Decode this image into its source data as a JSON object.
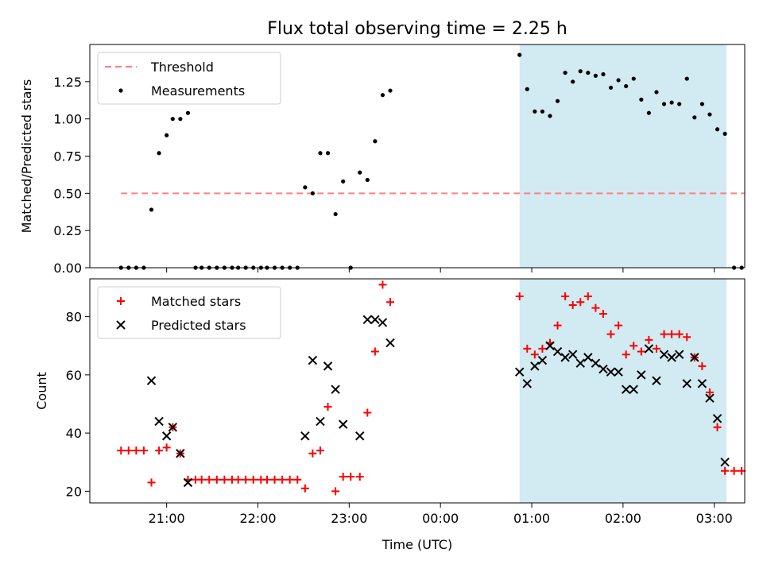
{
  "title": "Flux total observing time = 2.25 h",
  "colors": {
    "threshold": "#ff7f7f",
    "measure": "#000000",
    "matched": "#ff0000",
    "predicted": "#000000",
    "shade": "#add8e6"
  },
  "chart_data": [
    {
      "type": "scatter",
      "ylabel": "Matched/Predicted stars",
      "ylim": [
        0,
        1.5
      ],
      "yticks": [
        "0.00",
        "0.25",
        "0.50",
        "0.75",
        "1.00",
        "1.25"
      ],
      "shaded_span": [
        "00:52",
        "03:08"
      ],
      "legend": {
        "placement": "top-left",
        "entries": [
          "Threshold",
          "Measurements"
        ]
      },
      "threshold": {
        "name": "Threshold",
        "value": 0.5,
        "x_range": [
          "20:30",
          "03:20"
        ]
      },
      "series": [
        {
          "name": "Measurements",
          "points": [
            [
              "20:30",
              0
            ],
            [
              "20:35",
              0
            ],
            [
              "20:40",
              0
            ],
            [
              "20:45",
              0
            ],
            [
              "20:50",
              0.39
            ],
            [
              "20:55",
              0.77
            ],
            [
              "21:00",
              0.89
            ],
            [
              "21:04",
              1.0
            ],
            [
              "21:09",
              1.0
            ],
            [
              "21:14",
              1.04
            ],
            [
              "21:19",
              0
            ],
            [
              "21:23",
              0
            ],
            [
              "21:28",
              0
            ],
            [
              "21:33",
              0
            ],
            [
              "21:38",
              0
            ],
            [
              "21:43",
              0
            ],
            [
              "21:47",
              0
            ],
            [
              "21:52",
              0
            ],
            [
              "21:57",
              0
            ],
            [
              "22:02",
              0
            ],
            [
              "22:06",
              0
            ],
            [
              "22:11",
              0
            ],
            [
              "22:16",
              0
            ],
            [
              "22:21",
              0
            ],
            [
              "22:26",
              0
            ],
            [
              "22:31",
              0.54
            ],
            [
              "22:36",
              0.5
            ],
            [
              "22:41",
              0.77
            ],
            [
              "22:46",
              0.77
            ],
            [
              "22:51",
              0.36
            ],
            [
              "22:56",
              0.58
            ],
            [
              "23:01",
              0
            ],
            [
              "23:07",
              0.64
            ],
            [
              "23:12",
              0.59
            ],
            [
              "23:17",
              0.85
            ],
            [
              "23:22",
              1.16
            ],
            [
              "23:27",
              1.19
            ],
            [
              "00:52",
              1.43
            ],
            [
              "00:57",
              1.2
            ],
            [
              "01:02",
              1.05
            ],
            [
              "01:07",
              1.05
            ],
            [
              "01:12",
              1.02
            ],
            [
              "01:17",
              1.12
            ],
            [
              "01:22",
              1.31
            ],
            [
              "01:27",
              1.25
            ],
            [
              "01:32",
              1.32
            ],
            [
              "01:37",
              1.31
            ],
            [
              "01:42",
              1.29
            ],
            [
              "01:47",
              1.3
            ],
            [
              "01:52",
              1.21
            ],
            [
              "01:57",
              1.26
            ],
            [
              "02:02",
              1.22
            ],
            [
              "02:07",
              1.27
            ],
            [
              "02:12",
              1.13
            ],
            [
              "02:17",
              1.04
            ],
            [
              "02:22",
              1.18
            ],
            [
              "02:27",
              1.1
            ],
            [
              "02:32",
              1.11
            ],
            [
              "02:37",
              1.1
            ],
            [
              "02:42",
              1.27
            ],
            [
              "02:47",
              1.01
            ],
            [
              "02:52",
              1.1
            ],
            [
              "02:57",
              1.03
            ],
            [
              "03:02",
              0.93
            ],
            [
              "03:07",
              0.9
            ],
            [
              "03:13",
              0
            ],
            [
              "03:18",
              0
            ]
          ]
        }
      ]
    },
    {
      "type": "scatter",
      "xlabel": "Time (UTC)",
      "ylabel": "Count",
      "ylim": [
        16,
        93
      ],
      "yticks": [
        "20",
        "40",
        "60",
        "80"
      ],
      "xticks": [
        "21:00",
        "22:00",
        "23:00",
        "00:00",
        "01:00",
        "02:00",
        "03:00"
      ],
      "shaded_span": [
        "00:52",
        "03:08"
      ],
      "legend": {
        "placement": "top-left",
        "entries": [
          "Matched stars",
          "Predicted stars"
        ]
      },
      "series": [
        {
          "name": "Matched stars",
          "points": [
            [
              "20:30",
              34
            ],
            [
              "20:35",
              34
            ],
            [
              "20:40",
              34
            ],
            [
              "20:45",
              34
            ],
            [
              "20:50",
              23
            ],
            [
              "20:55",
              34
            ],
            [
              "21:00",
              35
            ],
            [
              "21:04",
              42
            ],
            [
              "21:09",
              33
            ],
            [
              "21:14",
              24
            ],
            [
              "21:19",
              24
            ],
            [
              "21:23",
              24
            ],
            [
              "21:28",
              24
            ],
            [
              "21:33",
              24
            ],
            [
              "21:38",
              24
            ],
            [
              "21:43",
              24
            ],
            [
              "21:47",
              24
            ],
            [
              "21:52",
              24
            ],
            [
              "21:57",
              24
            ],
            [
              "22:02",
              24
            ],
            [
              "22:06",
              24
            ],
            [
              "22:11",
              24
            ],
            [
              "22:16",
              24
            ],
            [
              "22:21",
              24
            ],
            [
              "22:26",
              24
            ],
            [
              "22:31",
              21
            ],
            [
              "22:36",
              33
            ],
            [
              "22:41",
              34
            ],
            [
              "22:46",
              49
            ],
            [
              "22:51",
              20
            ],
            [
              "22:56",
              25
            ],
            [
              "23:01",
              25
            ],
            [
              "23:07",
              25
            ],
            [
              "23:12",
              47
            ],
            [
              "23:17",
              68
            ],
            [
              "23:22",
              91
            ],
            [
              "23:27",
              85
            ],
            [
              "00:52",
              87
            ],
            [
              "00:57",
              69
            ],
            [
              "01:02",
              67
            ],
            [
              "01:07",
              69
            ],
            [
              "01:12",
              71
            ],
            [
              "01:17",
              77
            ],
            [
              "01:22",
              87
            ],
            [
              "01:27",
              84
            ],
            [
              "01:32",
              85
            ],
            [
              "01:37",
              87
            ],
            [
              "01:42",
              83
            ],
            [
              "01:47",
              81
            ],
            [
              "01:52",
              74
            ],
            [
              "01:57",
              77
            ],
            [
              "02:02",
              67
            ],
            [
              "02:07",
              70
            ],
            [
              "02:12",
              68
            ],
            [
              "02:17",
              72
            ],
            [
              "02:22",
              69
            ],
            [
              "02:27",
              74
            ],
            [
              "02:32",
              74
            ],
            [
              "02:37",
              74
            ],
            [
              "02:42",
              73
            ],
            [
              "02:47",
              66
            ],
            [
              "02:52",
              63
            ],
            [
              "02:57",
              54
            ],
            [
              "03:02",
              42
            ],
            [
              "03:07",
              27
            ],
            [
              "03:13",
              27
            ],
            [
              "03:18",
              27
            ]
          ]
        },
        {
          "name": "Predicted stars",
          "points": [
            [
              "20:50",
              58
            ],
            [
              "20:55",
              44
            ],
            [
              "21:00",
              39
            ],
            [
              "21:04",
              42
            ],
            [
              "21:09",
              33
            ],
            [
              "21:14",
              23
            ],
            [
              "22:31",
              39
            ],
            [
              "22:36",
              65
            ],
            [
              "22:41",
              44
            ],
            [
              "22:46",
              63
            ],
            [
              "22:51",
              55
            ],
            [
              "22:56",
              43
            ],
            [
              "23:07",
              39
            ],
            [
              "23:12",
              79
            ],
            [
              "23:17",
              79
            ],
            [
              "23:22",
              78
            ],
            [
              "23:27",
              71
            ],
            [
              "00:52",
              61
            ],
            [
              "00:57",
              57
            ],
            [
              "01:02",
              63
            ],
            [
              "01:07",
              65
            ],
            [
              "01:12",
              70
            ],
            [
              "01:17",
              68
            ],
            [
              "01:22",
              66
            ],
            [
              "01:27",
              67
            ],
            [
              "01:32",
              64
            ],
            [
              "01:37",
              66
            ],
            [
              "01:42",
              64
            ],
            [
              "01:47",
              62
            ],
            [
              "01:52",
              61
            ],
            [
              "01:57",
              61
            ],
            [
              "02:02",
              55
            ],
            [
              "02:07",
              55
            ],
            [
              "02:12",
              60
            ],
            [
              "02:17",
              69
            ],
            [
              "02:22",
              58
            ],
            [
              "02:27",
              67
            ],
            [
              "02:32",
              66
            ],
            [
              "02:37",
              67
            ],
            [
              "02:42",
              57
            ],
            [
              "02:47",
              66
            ],
            [
              "02:52",
              57
            ],
            [
              "02:57",
              52
            ],
            [
              "03:02",
              45
            ],
            [
              "03:07",
              30
            ]
          ]
        }
      ]
    }
  ]
}
